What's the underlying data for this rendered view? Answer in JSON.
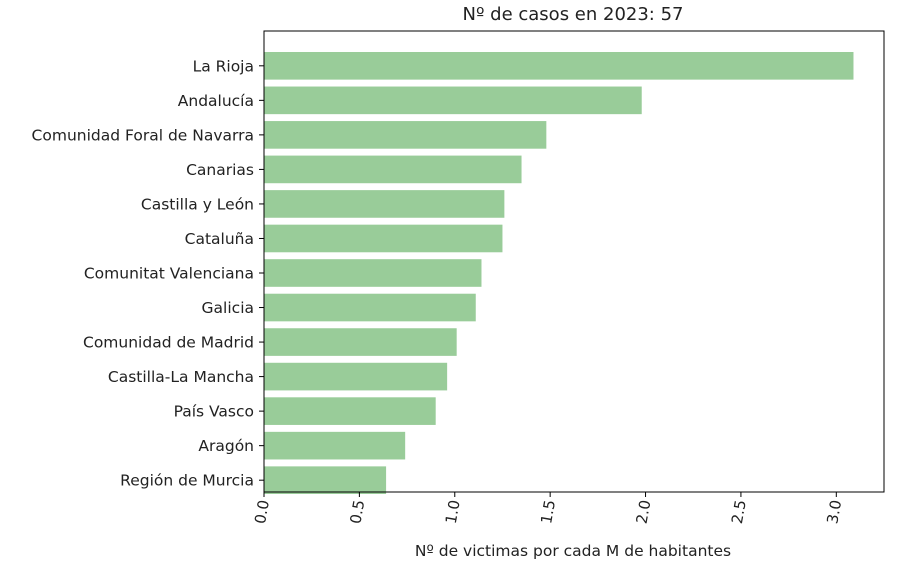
{
  "chart_data": {
    "type": "bar",
    "orientation": "horizontal",
    "title": "Nº de casos en 2023: 57",
    "xlabel": "Nº de victimas por cada M de habitantes",
    "ylabel": "",
    "xlim": [
      0,
      3.25
    ],
    "xticks": [
      "0.0",
      "0.5",
      "1.0",
      "1.5",
      "2.0",
      "2.5",
      "3.0"
    ],
    "xtick_values": [
      0,
      0.5,
      1.0,
      1.5,
      2.0,
      2.5,
      3.0
    ],
    "xtick_rotation": -80,
    "grid": false,
    "bar_color": "#99cc99",
    "categories": [
      "La Rioja",
      "Andalucía",
      "Comunidad Foral de Navarra",
      "Canarias",
      "Castilla y León",
      "Cataluña",
      "Comunitat Valenciana",
      "Galicia",
      "Comunidad de Madrid",
      "Castilla-La Mancha",
      "País Vasco",
      "Aragón",
      "Región de Murcia"
    ],
    "values": [
      3.09,
      1.98,
      1.48,
      1.35,
      1.26,
      1.25,
      1.14,
      1.11,
      1.01,
      0.96,
      0.9,
      0.74,
      0.64
    ]
  }
}
